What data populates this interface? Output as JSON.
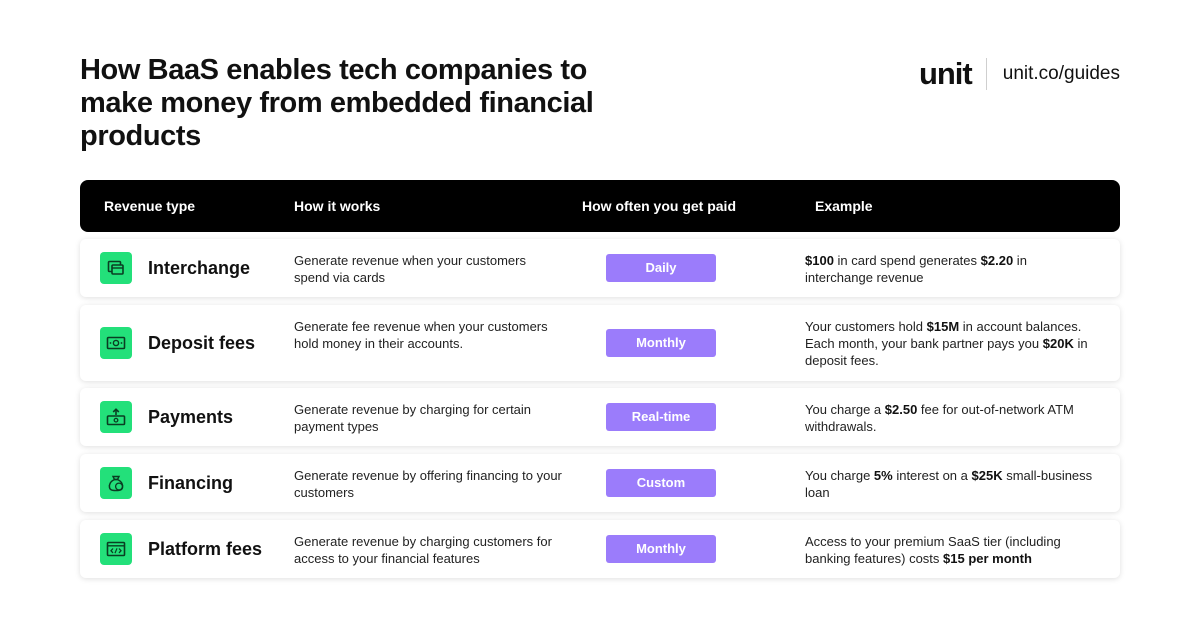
{
  "title": "How BaaS enables tech companies to make money from embedded financial products",
  "brand": {
    "logo": "unit",
    "url": "unit.co/guides"
  },
  "headers": {
    "revenue_type": "Revenue type",
    "how_it_works": "How it works",
    "how_often": "How often you get paid",
    "example": "Example"
  },
  "colors": {
    "accent_green": "#23e07a",
    "badge_purple": "#9b7cfb",
    "header_bg": "#000000"
  },
  "rows": [
    {
      "icon": "card-icon",
      "name": "Interchange",
      "how": "Generate revenue when your customers spend via cards",
      "frequency": "Daily",
      "example": [
        {
          "t": "$100",
          "b": true
        },
        {
          "t": " in card spend generates ",
          "b": false
        },
        {
          "t": "$2.20",
          "b": true
        },
        {
          "t": " in interchange revenue",
          "b": false
        }
      ]
    },
    {
      "icon": "cash-icon",
      "name": "Deposit fees",
      "how": "Generate fee revenue when your customers hold money in their accounts.",
      "frequency": "Monthly",
      "example": [
        {
          "t": "Your customers hold ",
          "b": false
        },
        {
          "t": "$15M",
          "b": true
        },
        {
          "t": " in account balances. Each month, your bank partner pays you ",
          "b": false
        },
        {
          "t": "$20K",
          "b": true
        },
        {
          "t": " in deposit fees.",
          "b": false
        }
      ]
    },
    {
      "icon": "payment-transfer-icon",
      "name": "Payments",
      "how": "Generate revenue by charging for certain payment types",
      "frequency": "Real-time",
      "example": [
        {
          "t": "You charge a ",
          "b": false
        },
        {
          "t": "$2.50",
          "b": true
        },
        {
          "t": " fee for out-of-network ATM withdrawals.",
          "b": false
        }
      ]
    },
    {
      "icon": "money-bag-icon",
      "name": "Financing",
      "how": "Generate revenue by offering financing to your customers",
      "frequency": "Custom",
      "example": [
        {
          "t": "You charge ",
          "b": false
        },
        {
          "t": "5%",
          "b": true
        },
        {
          "t": " interest on a ",
          "b": false
        },
        {
          "t": "$25K",
          "b": true
        },
        {
          "t": " small-business loan",
          "b": false
        }
      ]
    },
    {
      "icon": "code-window-icon",
      "name": "Platform fees",
      "how": "Generate revenue by charging customers for access to your financial features",
      "frequency": "Monthly",
      "example": [
        {
          "t": "Access to your premium SaaS tier (including banking features) costs ",
          "b": false
        },
        {
          "t": "$15 per month",
          "b": true
        }
      ]
    }
  ]
}
